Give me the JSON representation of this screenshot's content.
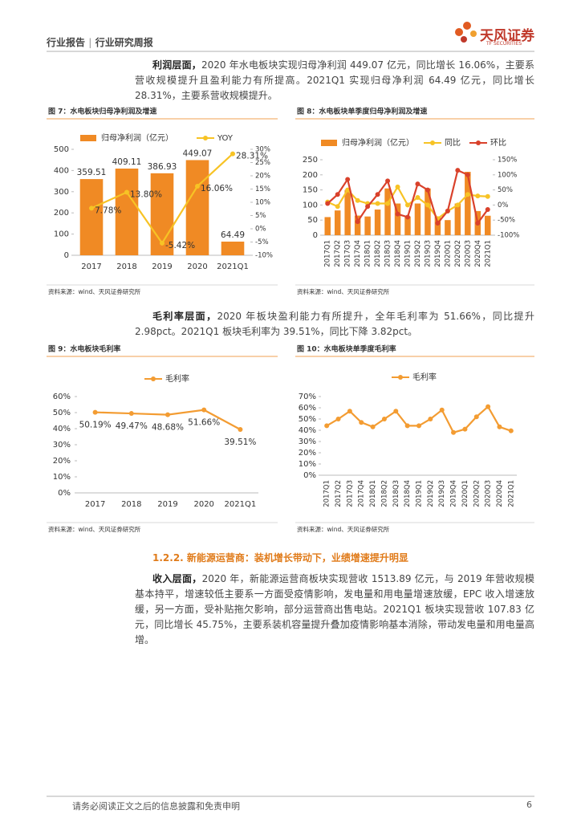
{
  "header": {
    "left": "行业报告",
    "right": "行业研究周报",
    "logo_cn": "天风证券",
    "logo_en": "TF SECURITIES"
  },
  "paragraphs": [
    {
      "lead": "利润层面，",
      "text": "2020 年水电板块实现归母净利润 449.07 亿元，同比增长 16.06%，主要系营收规模提升且盈利能力有所提高。2021Q1 实现归母净利润 64.49 亿元，同比增长 28.31%，主要系营收规模提升。"
    },
    {
      "lead": "毛利率层面，",
      "text": "2020 年板块盈利能力有所提升，全年毛利率为 51.66%，同比提升 2.98pct。2021Q1 板块毛利率为 39.51%，同比下降 3.82pct。"
    },
    {
      "lead": "收入层面，",
      "text": "2020 年，新能源运营商板块实现营收 1513.89 亿元，与 2019 年营收规模基本持平，增速较低主要系一方面受疫情影响，发电量和用电量增速放缓，EPC 收入增速放缓，另一方面，受补贴拖欠影响，部分运营商出售电站。2021Q1 板块实现营收 107.83 亿元，同比增长 45.75%，主要系装机容量提升叠加疫情影响基本消除，带动发电量和用电量高增。"
    }
  ],
  "section_heading": "1.2.2. 新能源运营商：装机增长带动下，业绩增速提升明显",
  "footer": {
    "disclaimer": "请务必阅读正文之后的信息披露和免责申明",
    "page": "6"
  },
  "chart_data": [
    {
      "type": "bar",
      "title": "图 7：水电板块归母净利润及增速",
      "source": "资料来源：wind、天风证券研究所",
      "data_labels": true,
      "categories": [
        "2017",
        "2018",
        "2019",
        "2020",
        "2021Q1"
      ],
      "series": [
        {
          "name": "归母净利润（亿元）",
          "color": "#f08a24",
          "values": [
            359.51,
            409.11,
            386.93,
            449.07,
            64.49
          ]
        },
        {
          "name": "YOY",
          "color": "#f7c325",
          "axis": "y2",
          "values": [
            7.78,
            13.8,
            -5.42,
            16.06,
            28.31
          ],
          "value_labels": [
            "7.78%",
            "13.80%",
            "-5.42%",
            "16.06%",
            "28.31%"
          ]
        }
      ],
      "ylim": [
        0,
        500
      ],
      "yticks": [
        0,
        100,
        200,
        300,
        400,
        500
      ],
      "y2lim": [
        -10,
        30
      ],
      "y2ticks": [
        {
          "value": -10,
          "label": "-10%"
        },
        {
          "value": -5,
          "label": "-5%"
        },
        {
          "value": 0,
          "label": "0%"
        },
        {
          "value": 5,
          "label": "5%"
        },
        {
          "value": 10,
          "label": "10%"
        },
        {
          "value": 15,
          "label": "15%"
        },
        {
          "value": 20,
          "label": "20%"
        },
        {
          "value": 25,
          "label": "25%"
        },
        {
          "value": 30,
          "label": "30%"
        }
      ]
    },
    {
      "type": "bar",
      "title": "图 8：水电板块单季度归母净利润及增速",
      "source": "资料来源：wind、天风证券研究所",
      "data_labels": false,
      "categories": [
        "2017Q1",
        "2017Q2",
        "2017Q3",
        "2017Q4",
        "2018Q1",
        "2018Q2",
        "2018Q3",
        "2018Q4",
        "2019Q1",
        "2019Q2",
        "2019Q3",
        "2019Q4",
        "2020Q1",
        "2020Q2",
        "2020Q3",
        "2020Q4",
        "2021Q1"
      ],
      "series": [
        {
          "name": "归母净利润（亿元）",
          "color": "#f08a24",
          "values": [
            60,
            82,
            150,
            65,
            62,
            85,
            155,
            105,
            62,
            105,
            155,
            62,
            50,
            105,
            210,
            80,
            64.49
          ]
        },
        {
          "name": "同比",
          "color": "#f7c325",
          "axis": "y2",
          "values": [
            10,
            -5,
            50,
            15,
            5,
            5,
            5,
            60,
            0,
            25,
            0,
            -45,
            -20,
            0,
            35,
            30,
            28.31
          ]
        },
        {
          "name": "环比",
          "color": "#d9412b",
          "axis": "y2",
          "values": [
            5,
            35,
            85,
            -55,
            -5,
            35,
            80,
            -30,
            -40,
            70,
            50,
            -60,
            -20,
            115,
            100,
            -60,
            -15
          ]
        }
      ],
      "ylim": [
        0,
        250
      ],
      "yticks": [
        0,
        50,
        100,
        150,
        200,
        250
      ],
      "y2lim": [
        -100,
        150
      ],
      "y2ticks": [
        {
          "value": -100,
          "label": "-100%"
        },
        {
          "value": -50,
          "label": "-50%"
        },
        {
          "value": 0,
          "label": "0%"
        },
        {
          "value": 50,
          "label": "50%"
        },
        {
          "value": 100,
          "label": "100%"
        },
        {
          "value": 150,
          "label": "150%"
        }
      ]
    },
    {
      "type": "line",
      "title": "图 9：水电板块毛利率",
      "source": "资料来源：wind、天风证券研究所",
      "data_labels": true,
      "categories": [
        "2017",
        "2018",
        "2019",
        "2020",
        "2021Q1"
      ],
      "series": [
        {
          "name": "毛利率",
          "color": "#f39c32",
          "values": [
            50.19,
            49.47,
            48.68,
            51.66,
            39.51
          ],
          "value_labels": [
            "50.19%",
            "49.47%",
            "48.68%",
            "51.66%",
            "39.51%"
          ]
        }
      ],
      "ylim": [
        0,
        60
      ],
      "yticks": [
        {
          "value": 0,
          "label": "0%"
        },
        {
          "value": 10,
          "label": "10%"
        },
        {
          "value": 20,
          "label": "20%"
        },
        {
          "value": 30,
          "label": "30%"
        },
        {
          "value": 40,
          "label": "40%"
        },
        {
          "value": 50,
          "label": "50%"
        },
        {
          "value": 60,
          "label": "60%"
        }
      ]
    },
    {
      "type": "line",
      "title": "图 10：水电板块单季度毛利率",
      "source": "资料来源：wind、天风证券研究所",
      "data_labels": false,
      "categories": [
        "2017Q1",
        "2017Q2",
        "2017Q3",
        "2017Q4",
        "2018Q1",
        "2018Q2",
        "2018Q3",
        "2018Q4",
        "2019Q1",
        "2019Q2",
        "2019Q3",
        "2019Q4",
        "2020Q1",
        "2020Q2",
        "2020Q3",
        "2020Q4",
        "2021Q1"
      ],
      "series": [
        {
          "name": "毛利率",
          "color": "#f39c32",
          "values": [
            44,
            50,
            57,
            47,
            43,
            50,
            57,
            44,
            44,
            50,
            58,
            38,
            41,
            52,
            61,
            43,
            39.51
          ]
        }
      ],
      "ylim": [
        0,
        70
      ],
      "yticks": [
        {
          "value": 0,
          "label": "0%"
        },
        {
          "value": 10,
          "label": "10%"
        },
        {
          "value": 20,
          "label": "20%"
        },
        {
          "value": 30,
          "label": "30%"
        },
        {
          "value": 40,
          "label": "40%"
        },
        {
          "value": 50,
          "label": "50%"
        },
        {
          "value": 60,
          "label": "60%"
        },
        {
          "value": 70,
          "label": "70%"
        }
      ]
    }
  ]
}
